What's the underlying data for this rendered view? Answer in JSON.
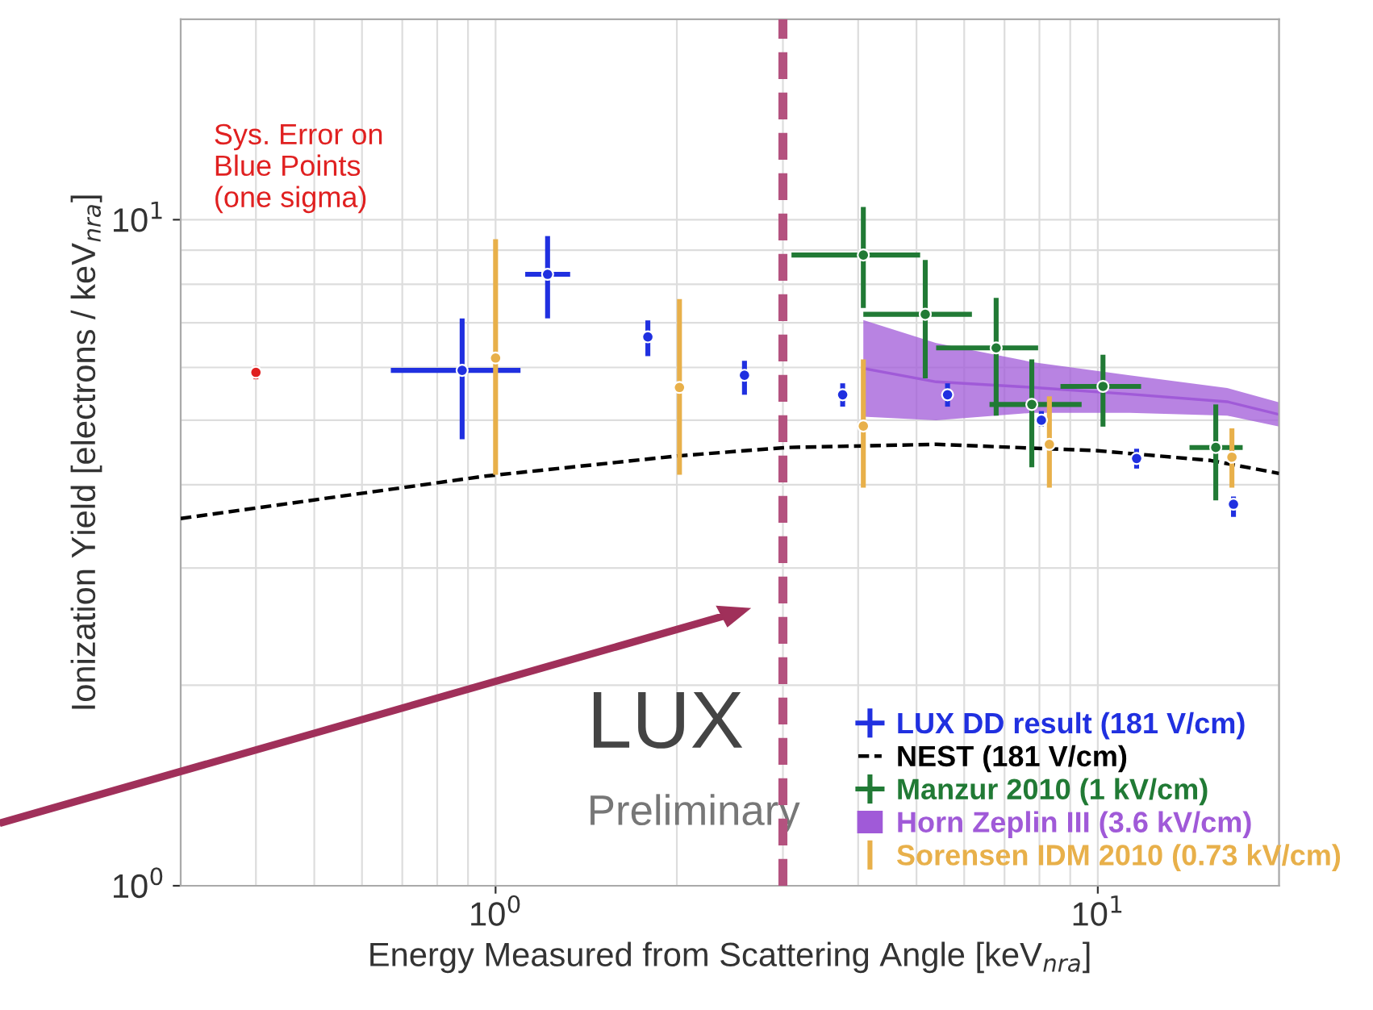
{
  "chart_data": {
    "type": "scatter",
    "xlabel": "Energy Measured from Scattering Angle [keV$_{nra}$]",
    "ylabel": "Ionization Yield [electrons / keV$_{nra}$]",
    "log": "xy",
    "xlim": [
      0.3,
      20
    ],
    "ylim": [
      1,
      20
    ],
    "xticks": [
      {
        "value": 1,
        "label": "10$^{0}$"
      },
      {
        "value": 10,
        "label": "10$^{1}$"
      }
    ],
    "yticks": [
      {
        "value": 1,
        "label": "10$^{0}$"
      },
      {
        "value": 10,
        "label": "10$^{1}$"
      }
    ],
    "grid": true,
    "legend": "bottom right",
    "ref_lines": [
      {
        "axis": "x",
        "value": 3,
        "color": "#b4527f",
        "line_style": "dashed"
      }
    ],
    "annotations": [
      "Sys. Error on\nBlue Points\n(one sigma)",
      "LUX",
      "Preliminary"
    ],
    "series": [
      {
        "color": "#e02020",
        "marker": "circle",
        "x": [
          0.4
        ],
        "values": [
          5.9
        ],
        "errors": [
          [
            5.76,
            6.03
          ]
        ]
      },
      {
        "name": "LUX DD result (181 V/cm)",
        "color": "#2030e0",
        "marker": "circle",
        "x": [
          0.88,
          1.22,
          1.79,
          2.59,
          3.77,
          5.63,
          8.06,
          11.6,
          16.8
        ],
        "values": [
          5.94,
          8.28,
          6.67,
          5.84,
          5.46,
          5.46,
          5.0,
          4.38,
          3.74
        ],
        "errors": [
          [
            4.68,
            7.11
          ],
          [
            7.11,
            9.45
          ],
          [
            6.24,
            7.06
          ],
          [
            5.46,
            6.14
          ],
          [
            5.24,
            5.68
          ],
          [
            5.24,
            5.68
          ],
          [
            4.89,
            5.16
          ],
          [
            4.23,
            4.53
          ],
          [
            3.58,
            3.84
          ]
        ],
        "xerrors": [
          [
            0.67,
            1.1
          ],
          [
            1.12,
            1.33
          ],
          null,
          null,
          null,
          null,
          null,
          null,
          null
        ]
      },
      {
        "type": "line",
        "name": "NEST (181 V/cm)",
        "color": "#000000",
        "line_style": "dashed",
        "x": [
          0.3,
          0.96,
          2.01,
          3.04,
          5.39,
          10,
          15.4,
          20
        ],
        "values": [
          3.56,
          4.12,
          4.42,
          4.55,
          4.6,
          4.5,
          4.35,
          4.16
        ]
      },
      {
        "name": "Manzur 2010 (1 kV/cm)",
        "color": "#217a35",
        "marker": "circle",
        "x": [
          4.08,
          5.17,
          6.78,
          7.77,
          10.2,
          15.7
        ],
        "values": [
          8.85,
          7.21,
          6.42,
          5.28,
          5.62,
          4.55
        ],
        "errors": [
          [
            7.37,
            10.45
          ],
          [
            5.78,
            8.7
          ],
          [
            5.08,
            7.63
          ],
          [
            4.25,
            6.17
          ],
          [
            4.89,
            6.27
          ],
          [
            3.79,
            5.28
          ]
        ],
        "xerrors": [
          [
            3.1,
            5.07
          ],
          [
            4.08,
            6.18
          ],
          [
            5.39,
            7.96
          ],
          [
            6.61,
            9.4
          ],
          [
            8.67,
            11.8
          ],
          [
            14.2,
            17.4
          ]
        ]
      },
      {
        "type": "line",
        "name": "Horn Zeplin III (3.6 kV/cm)",
        "color": "#a05ad8",
        "x": [
          4.08,
          5.39,
          7.8,
          11.3,
          16.4,
          20
        ],
        "values": [
          5.98,
          5.71,
          5.6,
          5.47,
          5.33,
          5.1
        ],
        "lower": [
          5.06,
          5.0,
          5.13,
          5.13,
          5.08,
          4.89
        ],
        "upper": [
          7.07,
          6.53,
          6.11,
          5.84,
          5.59,
          5.32
        ]
      },
      {
        "name": "Sorensen IDM 2010 (0.73 kV/cm)",
        "color": "#e8b04a",
        "marker": "circle",
        "x": [
          1.0,
          2.02,
          4.08,
          8.31,
          16.7
        ],
        "values": [
          6.2,
          5.6,
          4.9,
          4.6,
          4.4
        ],
        "errors": [
          [
            4.14,
            9.35
          ],
          [
            4.14,
            7.6
          ],
          [
            3.96,
            6.17
          ],
          [
            3.96,
            5.43
          ],
          [
            3.96,
            4.86
          ]
        ]
      }
    ]
  }
}
